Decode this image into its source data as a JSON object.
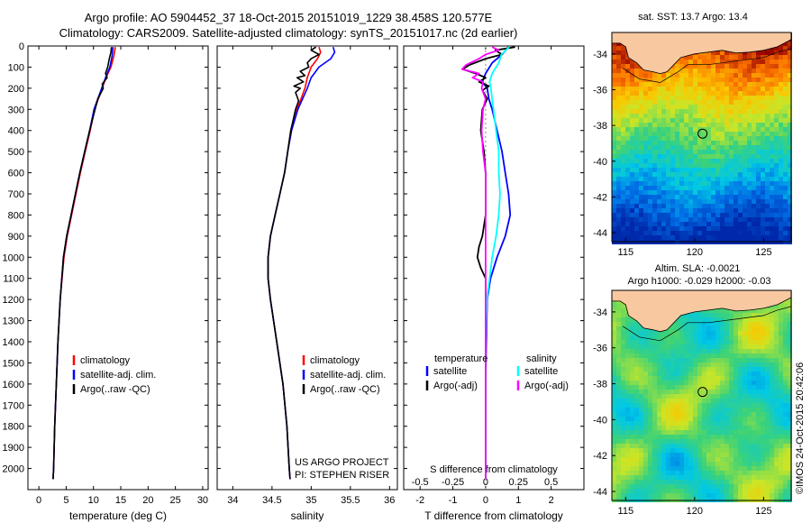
{
  "header": {
    "line1": "Argo profile: AO 5904452_37 18-Oct-2015 20151019_1229 38.458S 120.577E",
    "line2": "Climatology: CARS2009. Satellite-adjusted climatology: synTS_20151017.nc (2d earlier)"
  },
  "colors": {
    "climatology": "#ff0000",
    "satellite": "#0000ff",
    "argo": "#000000",
    "sal_satellite": "#00ffff",
    "sal_argo": "#ff00ff"
  },
  "chart_data": [
    {
      "type": "line",
      "id": "temperature",
      "xlabel": "temperature (deg C)",
      "xlim": [
        -2,
        31
      ],
      "ylim": [
        2100,
        0
      ],
      "xticks": [
        "0",
        "5",
        "10",
        "15",
        "20",
        "25",
        "30"
      ],
      "xtick_values": [
        0,
        5,
        10,
        15,
        20,
        25,
        30
      ],
      "yticks": [
        "0",
        "100",
        "200",
        "300",
        "400",
        "500",
        "600",
        "700",
        "800",
        "900",
        "1000",
        "1100",
        "1200",
        "1300",
        "1400",
        "1500",
        "1600",
        "1700",
        "1800",
        "1900",
        "2000"
      ],
      "ytick_values": [
        0,
        100,
        200,
        300,
        400,
        500,
        600,
        700,
        800,
        900,
        1000,
        1100,
        1200,
        1300,
        1400,
        1500,
        1600,
        1700,
        1800,
        1900,
        2000
      ],
      "legend": [
        "climatology",
        "satellite-adj. clim.",
        "Argo(..raw -QC)"
      ],
      "series": [
        {
          "name": "climatology",
          "color_key": "climatology",
          "depth": [
            5,
            50,
            100,
            150,
            200,
            300,
            400,
            500,
            600,
            700,
            800,
            900,
            1000,
            1200,
            1400,
            1600,
            1800,
            2000,
            2050
          ],
          "values": [
            14.0,
            13.7,
            13.2,
            12.3,
            11.6,
            10.2,
            9.4,
            8.5,
            7.6,
            6.8,
            6.0,
            5.2,
            4.6,
            3.9,
            3.5,
            3.2,
            2.9,
            2.7,
            2.6
          ]
        },
        {
          "name": "satellite-adj. clim.",
          "color_key": "satellite",
          "depth": [
            5,
            50,
            100,
            150,
            200,
            300,
            400,
            500,
            600,
            700,
            800,
            900,
            1000,
            1200,
            1400,
            1600,
            1800,
            2000,
            2050
          ],
          "values": [
            13.6,
            13.4,
            13.0,
            12.2,
            11.5,
            10.1,
            9.3,
            8.4,
            7.5,
            6.7,
            5.9,
            5.1,
            4.5,
            3.9,
            3.5,
            3.2,
            2.9,
            2.7,
            2.6
          ]
        },
        {
          "name": "Argo(..raw -QC)",
          "color_key": "argo",
          "depth": [
            5,
            30,
            60,
            100,
            130,
            150,
            180,
            200,
            250,
            300,
            400,
            500,
            600,
            700,
            800,
            900,
            1000,
            1100,
            1200,
            1400,
            1600,
            1800,
            2000,
            2050
          ],
          "values": [
            13.3,
            13.2,
            12.9,
            12.6,
            12.2,
            12.5,
            11.6,
            11.8,
            10.8,
            10.3,
            9.3,
            8.4,
            7.5,
            6.7,
            5.9,
            5.1,
            4.5,
            4.2,
            3.9,
            3.5,
            3.2,
            2.9,
            2.7,
            2.6
          ]
        }
      ]
    },
    {
      "type": "line",
      "id": "salinity",
      "xlabel": "salinity",
      "xlim": [
        33.8,
        36.1
      ],
      "ylim": [
        2100,
        0
      ],
      "xticks": [
        "34",
        "34.5",
        "35",
        "35.5",
        "36"
      ],
      "xtick_values": [
        34,
        34.5,
        35,
        35.5,
        36
      ],
      "legend": [
        "climatology",
        "satellite-adj. clim.",
        "Argo(..raw -QC)"
      ],
      "annotation": [
        "US ARGO PROJECT",
        "PI: STEPHEN RISER"
      ],
      "series": [
        {
          "name": "climatology",
          "color_key": "climatology",
          "depth": [
            5,
            30,
            60,
            100,
            150,
            200,
            300,
            400,
            500,
            600,
            700,
            800,
            900,
            1000,
            1100,
            1200,
            1400,
            1600,
            1800,
            2000,
            2050
          ],
          "values": [
            35.1,
            35.12,
            35.08,
            35.0,
            34.95,
            34.92,
            34.82,
            34.74,
            34.7,
            34.66,
            34.6,
            34.54,
            34.48,
            34.45,
            34.45,
            34.48,
            34.56,
            34.64,
            34.69,
            34.72,
            34.73
          ]
        },
        {
          "name": "satellite-adj. clim.",
          "color_key": "satellite",
          "depth": [
            5,
            30,
            60,
            100,
            150,
            200,
            300,
            400,
            500,
            600,
            700,
            800,
            900,
            1000,
            1100,
            1200,
            1400,
            1600,
            1800,
            2000,
            2050
          ],
          "values": [
            35.28,
            35.3,
            35.25,
            35.1,
            35.0,
            34.95,
            34.83,
            34.75,
            34.7,
            34.66,
            34.6,
            34.54,
            34.48,
            34.45,
            34.45,
            34.48,
            34.56,
            34.64,
            34.69,
            34.72,
            34.73
          ]
        },
        {
          "name": "Argo(..raw -QC)",
          "color_key": "argo",
          "depth": [
            5,
            20,
            40,
            60,
            80,
            100,
            120,
            140,
            150,
            170,
            190,
            200,
            220,
            260,
            300,
            400,
            500,
            600,
            700,
            800,
            900,
            1000,
            1100,
            1200,
            1400,
            1600,
            1800,
            2000,
            2050
          ],
          "values": [
            35.06,
            35.0,
            35.1,
            35.0,
            34.95,
            34.97,
            34.86,
            34.92,
            34.82,
            34.9,
            34.78,
            34.86,
            34.8,
            34.84,
            34.8,
            34.74,
            34.7,
            34.66,
            34.6,
            34.54,
            34.48,
            34.45,
            34.45,
            34.48,
            34.56,
            34.64,
            34.69,
            34.72,
            34.73
          ]
        }
      ]
    },
    {
      "type": "line",
      "id": "difference",
      "xlabel": "T difference from climatology",
      "xlim_T": [
        -2.5,
        3.0
      ],
      "xticks_T": [
        "-2",
        "-1",
        "0",
        "1",
        "2"
      ],
      "xtick_values_T": [
        -2,
        -1,
        0,
        1,
        2
      ],
      "top_label": "S difference from climatology",
      "xticks_S": [
        "-0.5",
        "-0.25",
        "0",
        "0.25",
        "0.5"
      ],
      "xtick_values_S": [
        -0.5,
        -0.25,
        0,
        0.25,
        0.5
      ],
      "legend_T_title": "temperature",
      "legend_S_title": "salinity",
      "legend_T": [
        "satellite",
        "Argo(-adj)"
      ],
      "legend_S": [
        "satellite",
        "Argo(-adj)"
      ],
      "series": [
        {
          "name": "T satellite",
          "color_key": "satellite",
          "depth": [
            5,
            40,
            80,
            130,
            170,
            200,
            250,
            300,
            400,
            500,
            600,
            700,
            800,
            900,
            1000,
            1100,
            1200,
            1400,
            1600,
            1800,
            2000,
            2050
          ],
          "values": [
            0.7,
            0.5,
            0.2,
            0.0,
            -0.1,
            0.05,
            0.1,
            0.2,
            0.35,
            0.5,
            0.6,
            0.7,
            0.75,
            0.6,
            0.35,
            0.15,
            0.05,
            0.02,
            0.0,
            0.0,
            0.0,
            0.0
          ]
        },
        {
          "name": "T Argo(-adj)",
          "color_key": "argo",
          "depth": [
            5,
            20,
            40,
            60,
            90,
            110,
            130,
            150,
            170,
            190,
            210,
            250,
            300,
            400,
            500,
            600,
            700,
            800,
            900,
            950,
            1000,
            1050,
            1100,
            1200,
            1400,
            1600,
            1800,
            2000,
            2050
          ],
          "values": [
            0.9,
            0.3,
            0.5,
            0.0,
            -0.5,
            -0.7,
            -0.3,
            0.0,
            -0.2,
            0.1,
            -0.1,
            0.05,
            -0.1,
            -0.15,
            -0.05,
            0.0,
            0.0,
            0.0,
            -0.1,
            -0.2,
            -0.25,
            -0.15,
            0.0,
            0.0,
            0.0,
            0.0,
            0.0,
            0.0,
            0.0
          ]
        },
        {
          "name": "S satellite",
          "color_key": "sal_satellite",
          "depth": [
            5,
            40,
            80,
            130,
            170,
            200,
            300,
            400,
            500,
            600,
            700,
            800,
            900,
            1000,
            1100,
            1200,
            1400,
            1600,
            1800,
            2000,
            2050
          ],
          "values": [
            0.18,
            0.12,
            0.1,
            0.05,
            0.03,
            0.04,
            0.06,
            0.08,
            0.1,
            0.1,
            0.11,
            0.1,
            0.08,
            0.05,
            0.03,
            0.01,
            0.0,
            0.0,
            0.0,
            0.0,
            0.0
          ]
        },
        {
          "name": "S Argo(-adj)",
          "color_key": "sal_argo",
          "depth": [
            5,
            20,
            40,
            60,
            90,
            110,
            130,
            150,
            170,
            200,
            250,
            300,
            400,
            500,
            600,
            700,
            800,
            900,
            1000,
            1100,
            1200,
            1400,
            1600,
            1800,
            2000,
            2050
          ],
          "values": [
            0.05,
            0.1,
            0.0,
            -0.05,
            -0.15,
            -0.18,
            -0.05,
            -0.1,
            -0.02,
            -0.03,
            0.0,
            -0.02,
            -0.03,
            -0.02,
            0.0,
            0.0,
            0.0,
            0.0,
            0.0,
            0.0,
            0.0,
            0.0,
            0.0,
            0.0,
            0.0,
            0.0
          ]
        }
      ]
    },
    {
      "type": "heatmap",
      "id": "sst_map",
      "title": "sat. SST: 13.7  Argo: 13.4",
      "xticks": [
        "115",
        "120",
        "125"
      ],
      "xtick_values": [
        115,
        120,
        125
      ],
      "yticks": [
        "-34",
        "-36",
        "-38",
        "-40",
        "-42",
        "-44"
      ],
      "ytick_values": [
        -34,
        -36,
        -38,
        -40,
        -42,
        -44
      ],
      "xlim": [
        114,
        127
      ],
      "ylim": [
        -44.5,
        -32.8
      ],
      "float_lon": 120.577,
      "float_lat": -38.458
    },
    {
      "type": "heatmap",
      "id": "sla_map",
      "title_line1": "Altim. SLA: -0.0021",
      "title_line2": "Argo h1000: -0.029  h2000: -0.03",
      "xticks": [
        "115",
        "120",
        "125"
      ],
      "xtick_values": [
        115,
        120,
        125
      ],
      "yticks": [
        "-34",
        "-36",
        "-38",
        "-40",
        "-42",
        "-44"
      ],
      "ytick_values": [
        -34,
        -36,
        -38,
        -40,
        -42,
        -44
      ],
      "xlim": [
        114,
        127
      ],
      "ylim": [
        -44.5,
        -32.8
      ],
      "float_lon": 120.577,
      "float_lat": -38.458
    }
  ],
  "credit": "©IMOS 24-Oct-2015 20:42:06"
}
